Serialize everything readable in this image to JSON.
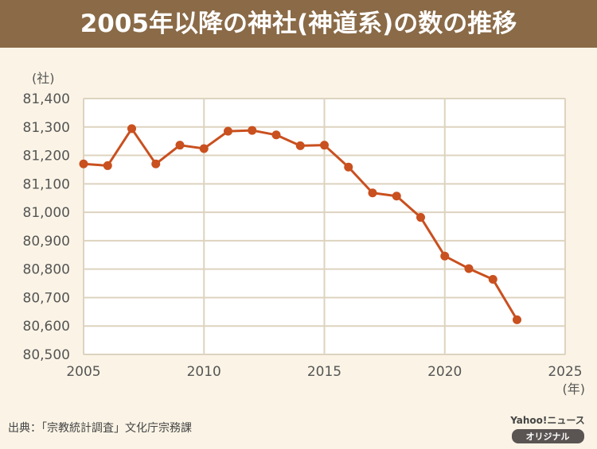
{
  "header": {
    "title": "2005年以降の神社(神道系)の数の推移"
  },
  "source": "出典：「宗教統計調査」文化庁宗務課",
  "logo": {
    "brand": "Yahoo!ニュース",
    "badge": "オリジナル"
  },
  "colors": {
    "header": "#8a6a47",
    "line": "#c9501f",
    "background": "#fbf4e6",
    "grid": "#ddd3bf"
  },
  "chart_data": {
    "type": "line",
    "title": "2005年以降の神社(神道系)の数の推移",
    "xlabel": "(年)",
    "ylabel": "(社)",
    "xlim": [
      2005,
      2025
    ],
    "ylim": [
      80500,
      81400
    ],
    "grid": true,
    "x_ticks": [
      "2005",
      "2010",
      "2015",
      "2020",
      "2025"
    ],
    "y_ticks": [
      "80,500",
      "80,600",
      "80,700",
      "80,800",
      "80,900",
      "81,000",
      "81,100",
      "81,200",
      "81,300",
      "81,400"
    ],
    "x": [
      2005,
      2006,
      2007,
      2008,
      2009,
      2010,
      2011,
      2012,
      2013,
      2014,
      2015,
      2016,
      2017,
      2018,
      2019,
      2020,
      2021,
      2022,
      2023
    ],
    "values": [
      81170,
      81164,
      81294,
      81170,
      81236,
      81224,
      81285,
      81288,
      81272,
      81234,
      81236,
      81159,
      81068,
      81057,
      80982,
      80846,
      80802,
      80764,
      80622
    ]
  }
}
